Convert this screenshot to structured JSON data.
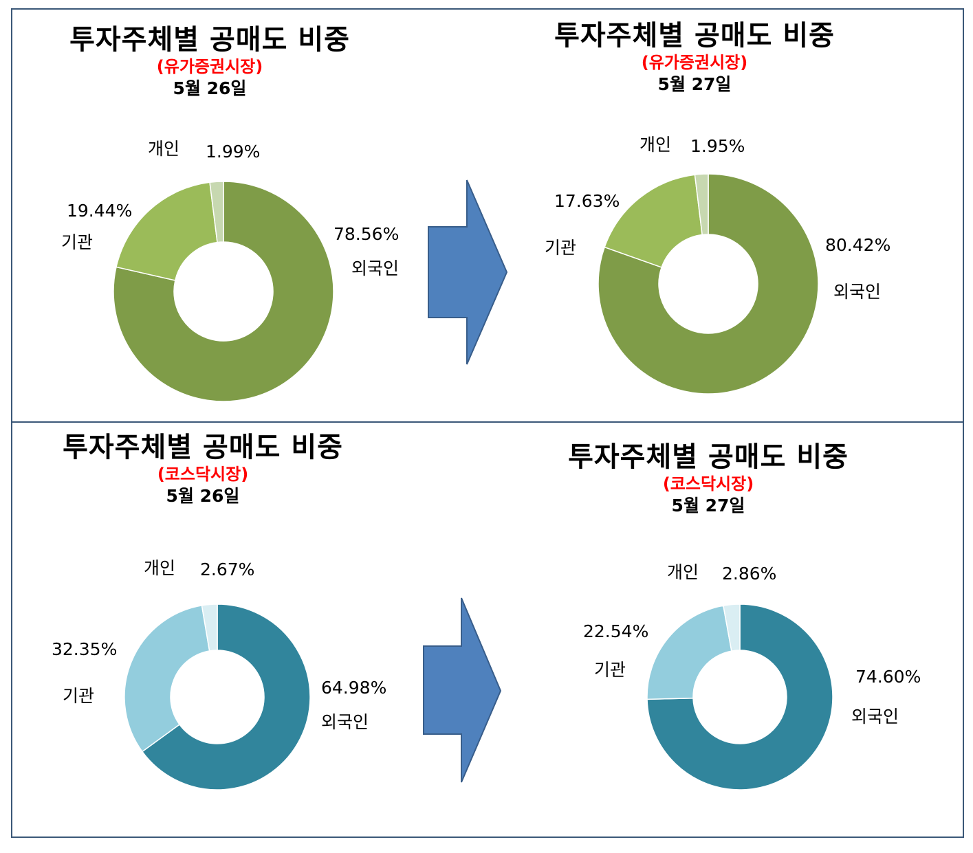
{
  "colors": {
    "arrow_fill": "#4f81bd",
    "arrow_stroke": "#385d8a",
    "subtitle_red": "#ff0000",
    "frame": "#3b5878"
  },
  "chart_data": [
    {
      "type": "pie",
      "title": "투자주체별 공매도 비중",
      "subtitle": "(유가증권시장)",
      "date": "5월 26일",
      "slices": [
        {
          "name": "외국인",
          "value": 78.56,
          "label": "78.56%",
          "color": "#7f9c48"
        },
        {
          "name": "기관",
          "value": 19.44,
          "label": "19.44%",
          "color": "#9bbb59"
        },
        {
          "name": "개인",
          "value": 1.99,
          "label": "1.99%",
          "color": "#c7d8b0"
        }
      ]
    },
    {
      "type": "pie",
      "title": "투자주체별 공매도 비중",
      "subtitle": "(유가증권시장)",
      "date": "5월 27일",
      "slices": [
        {
          "name": "외국인",
          "value": 80.42,
          "label": "80.42%",
          "color": "#7f9c48"
        },
        {
          "name": "기관",
          "value": 17.63,
          "label": "17.63%",
          "color": "#9bbb59"
        },
        {
          "name": "개인",
          "value": 1.95,
          "label": "1.95%",
          "color": "#c7d8b0"
        }
      ]
    },
    {
      "type": "pie",
      "title": "투자주체별 공매도 비중",
      "subtitle": "(코스닥시장)",
      "date": "5월 26일",
      "slices": [
        {
          "name": "외국인",
          "value": 64.98,
          "label": "64.98%",
          "color": "#31859c"
        },
        {
          "name": "기관",
          "value": 32.35,
          "label": "32.35%",
          "color": "#93cddd"
        },
        {
          "name": "개인",
          "value": 2.67,
          "label": "2.67%",
          "color": "#daeef3"
        }
      ]
    },
    {
      "type": "pie",
      "title": "투자주체별 공매도 비중",
      "subtitle": "(코스닥시장)",
      "date": "5월 27일",
      "slices": [
        {
          "name": "외국인",
          "value": 74.6,
          "label": "74.60%",
          "color": "#31859c"
        },
        {
          "name": "기관",
          "value": 22.54,
          "label": "22.54%",
          "color": "#93cddd"
        },
        {
          "name": "개인",
          "value": 2.86,
          "label": "2.86%",
          "color": "#daeef3"
        }
      ]
    }
  ]
}
